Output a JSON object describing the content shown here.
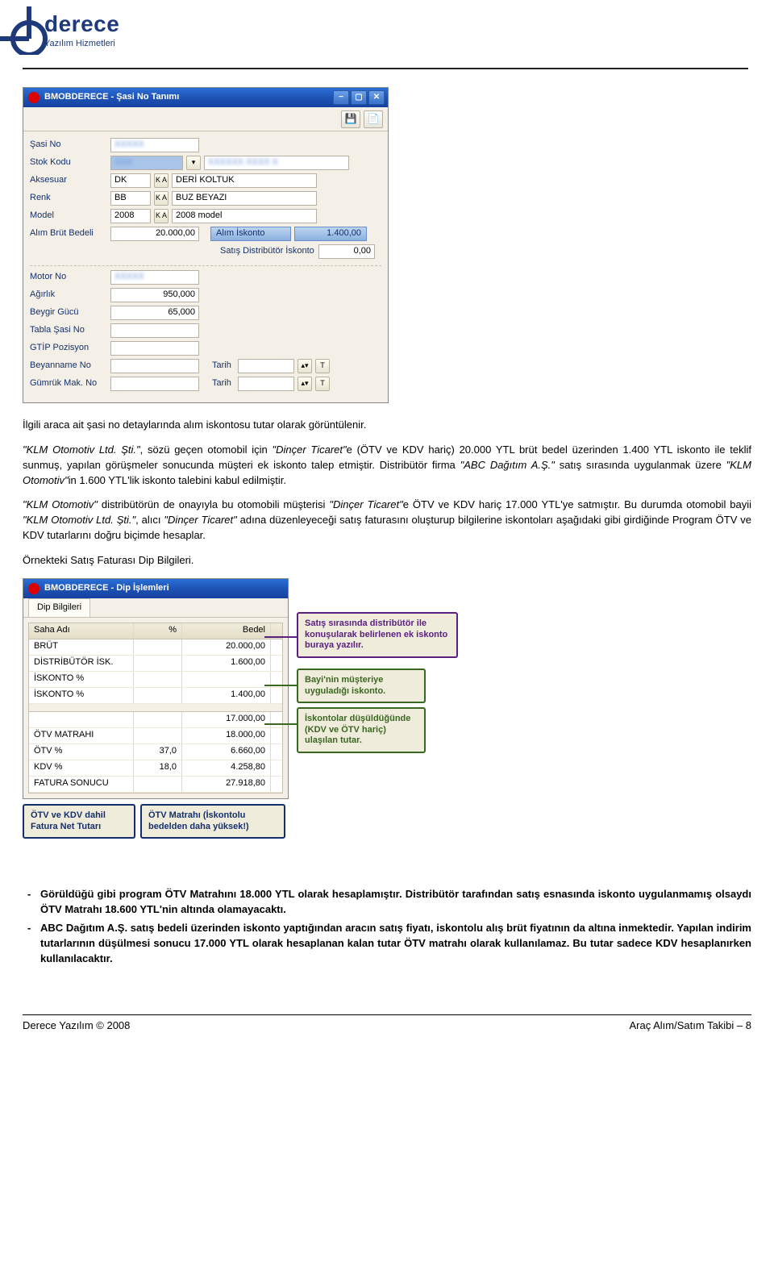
{
  "logo": {
    "title": "derece",
    "sub": "Yazılım Hizmetleri"
  },
  "win1": {
    "title": "BMOBDERECE - Şasi No Tanımı",
    "labels": {
      "sasiNo": "Şasi No",
      "stokKodu": "Stok Kodu",
      "aksesuar": "Aksesuar",
      "renk": "Renk",
      "model": "Model",
      "alimBrut": "Alım Brüt Bedeli",
      "alimIskonto": "Alım İskonto",
      "satisDistIskonto": "Satış Distribütör İskonto",
      "motorNo": "Motor No",
      "agirlik": "Ağırlık",
      "beygir": "Beygir Gücü",
      "tablaSasi": "Tabla Şasi No",
      "gtip": "GTİP Pozisyon",
      "beyanname": "Beyanname No",
      "gumruk": "Gümrük Mak. No",
      "tarih": "Tarih"
    },
    "vals": {
      "aksesuar_code": "DK",
      "aksesuar_text": "DERİ KOLTUK",
      "renk_code": "BB",
      "renk_text": "BUZ BEYAZI",
      "model_code": "2008",
      "model_text": "2008 model",
      "alimBrut": "20.000,00",
      "alimIskonto": "1.400,00",
      "satisDistIskonto": "0,00",
      "agirlik": "950,000",
      "beygir": "65,000"
    },
    "btnKA": "K A",
    "btnT": "T"
  },
  "para1": "İlgili araca ait şasi no detaylarında alım iskontosu tutar olarak görüntülenir.",
  "para2a": "\"KLM Otomotiv Ltd. Şti.\"",
  "para2b": ", sözü geçen otomobil için ",
  "para2c": "\"Dinçer Ticaret\"",
  "para2d": "e (ÖTV ve KDV hariç) 20.000 YTL brüt bedel üzerinden 1.400 YTL iskonto ile teklif sunmuş, yapılan görüşmeler sonucunda müşteri ek iskonto talep etmiştir. Distribütör firma ",
  "para2e": "\"ABC Dağıtım A.Ş.\"",
  "para2f": " satış sırasında uygulanmak üzere ",
  "para2g": "\"KLM Otomotiv\"",
  "para2h": "in 1.600 YTL'lik iskonto talebini kabul edilmiştir.",
  "para3a": "\"KLM Otomotiv\"",
  "para3b": " distribütörün de onayıyla bu otomobili müşterisi ",
  "para3c": "\"Dinçer Ticaret\"",
  "para3d": "e ÖTV ve KDV hariç 17.000 YTL'ye satmıştır. Bu durumda otomobil bayii ",
  "para3e": "\"KLM Otomotiv Ltd. Şti.\"",
  "para3f": ", alıcı ",
  "para3g": "\"Dinçer Ticaret\"",
  "para3h": " adına düzenleyeceği satış faturasını oluşturup bilgilerine iskontoları aşağıdaki gibi girdiğinde Program ÖTV ve KDV tutarlarını doğru biçimde hesaplar.",
  "para4": "Örnekteki Satış Faturası Dip Bilgileri.",
  "win2": {
    "title": "BMOBDERECE - Dip İşlemleri",
    "tab": "Dip Bilgileri",
    "hdr": {
      "c1": "Saha Adı",
      "c2": "%",
      "c3": "Bedel"
    },
    "rows": [
      {
        "c1": "BRÜT",
        "c2": "",
        "c3": "20.000,00"
      },
      {
        "c1": "DİSTRİBÜTÖR İSK.",
        "c2": "",
        "c3": "1.600,00"
      },
      {
        "c1": "İSKONTO %",
        "c2": "",
        "c3": ""
      },
      {
        "c1": "İSKONTO %",
        "c2": "",
        "c3": "1.400,00"
      }
    ],
    "rows2": [
      {
        "c1": "",
        "c2": "",
        "c3": "17.000,00"
      },
      {
        "c1": "ÖTV MATRAHI",
        "c2": "",
        "c3": "18.000,00"
      },
      {
        "c1": "ÖTV %",
        "c2": "37,0",
        "c3": "6.660,00"
      },
      {
        "c1": "KDV %",
        "c2": "18,0",
        "c3": "4.258,80"
      },
      {
        "c1": "FATURA SONUCU",
        "c2": "",
        "c3": "27.918,80"
      }
    ]
  },
  "callouts": {
    "c1": "Satış sırasında distribütör ile konuşularak belirlenen ek iskonto buraya yazılır.",
    "c2": "Bayi'nin müşteriye uyguladığı iskonto.",
    "c3": "İskontolar düşüldüğünde (KDV ve ÖTV hariç) ulaşılan tutar.",
    "cb1": "ÖTV ve KDV dahil Fatura Net Tutarı",
    "cb2": "ÖTV Matrahı (İskontolu bedelden daha yüksek!)"
  },
  "bullets": {
    "b1": "Görüldüğü gibi program ÖTV Matrahını 18.000 YTL olarak hesaplamıştır. Distribütör tarafından satış esnasında iskonto uygulanmamış olsaydı ÖTV Matrahı 18.600 YTL'nin altında olamayacaktı.",
    "b2": "ABC Dağıtım A.Ş. satış bedeli üzerinden iskonto yaptığından aracın satış fiyatı, iskontolu alış brüt fiyatının da altına inmektedir. Yapılan indirim tutarlarının düşülmesi sonucu 17.000 YTL olarak hesaplanan kalan tutar ÖTV matrahı olarak kullanılamaz. Bu tutar sadece KDV hesaplanırken kullanılacaktır."
  },
  "footer": {
    "left": "Derece Yazılım © 2008",
    "right": "Araç Alım/Satım Takibi – 8"
  }
}
